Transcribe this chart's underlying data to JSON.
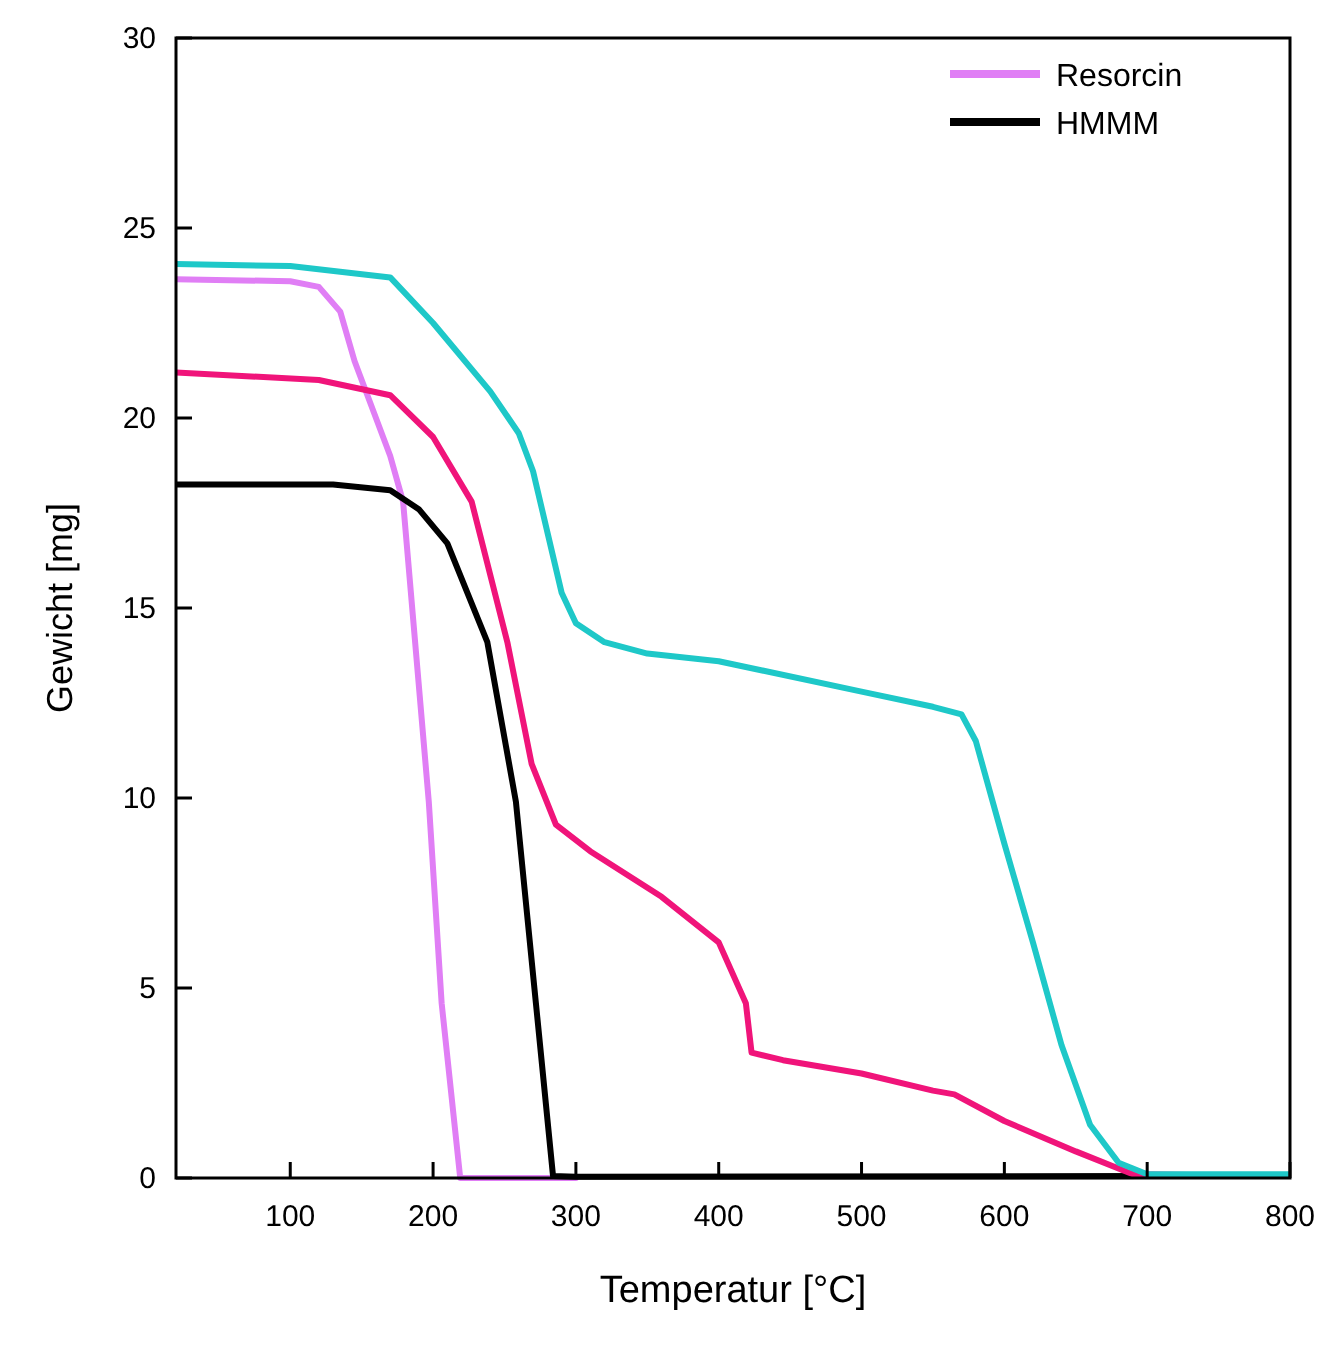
{
  "chart_data": {
    "type": "line",
    "xlabel": "Temperatur [°C]",
    "ylabel": "Gewicht [mg]",
    "xlim": [
      20,
      800
    ],
    "xticks": [
      100,
      200,
      300,
      400,
      500,
      600,
      700,
      800
    ],
    "ylim": [
      0,
      30
    ],
    "yticks": [
      0,
      5,
      10,
      15,
      20,
      25,
      30
    ],
    "grid": false,
    "legend": "top right",
    "marker": "none",
    "line_style": "solid",
    "series": [
      {
        "name": "Resorcin",
        "color": "#e07ef5",
        "x": [
          20,
          100,
          120,
          135,
          145,
          160,
          170,
          179,
          197,
          206,
          219,
          300
        ],
        "values": [
          23.65,
          23.6,
          23.45,
          22.8,
          21.5,
          20.0,
          19.0,
          17.8,
          9.9,
          4.6,
          0,
          0
        ]
      },
      {
        "name": "HMMM",
        "color": "#000000",
        "x": [
          20,
          130,
          170,
          190,
          210,
          238,
          258,
          272,
          284,
          300,
          700,
          800
        ],
        "values": [
          18.25,
          18.25,
          18.1,
          17.6,
          16.7,
          14.1,
          9.9,
          4.6,
          0.05,
          0.03,
          0.05,
          0.05
        ]
      },
      {
        "color": "#f0147a",
        "x": [
          20,
          120,
          170,
          200,
          227,
          252,
          269,
          286,
          310,
          360,
          400,
          419,
          423,
          445,
          500,
          550,
          565,
          600,
          650,
          690,
          800
        ],
        "values": [
          21.2,
          21.0,
          20.6,
          19.5,
          17.8,
          14.1,
          10.9,
          9.3,
          8.6,
          7.4,
          6.2,
          4.6,
          3.3,
          3.1,
          2.75,
          2.3,
          2.2,
          1.5,
          0.7,
          0.1,
          0.05
        ]
      },
      {
        "color": "#1ec8c8",
        "x": [
          20,
          100,
          170,
          200,
          240,
          260,
          270,
          280,
          290,
          300,
          320,
          350,
          400,
          500,
          550,
          570,
          580,
          600,
          620,
          640,
          660,
          680,
          700,
          800
        ],
        "values": [
          24.05,
          24.0,
          23.7,
          22.5,
          20.7,
          19.6,
          18.6,
          17.0,
          15.4,
          14.6,
          14.1,
          13.8,
          13.6,
          12.8,
          12.4,
          12.2,
          11.5,
          8.8,
          6.2,
          3.5,
          1.4,
          0.4,
          0.1,
          0.1
        ]
      }
    ]
  }
}
